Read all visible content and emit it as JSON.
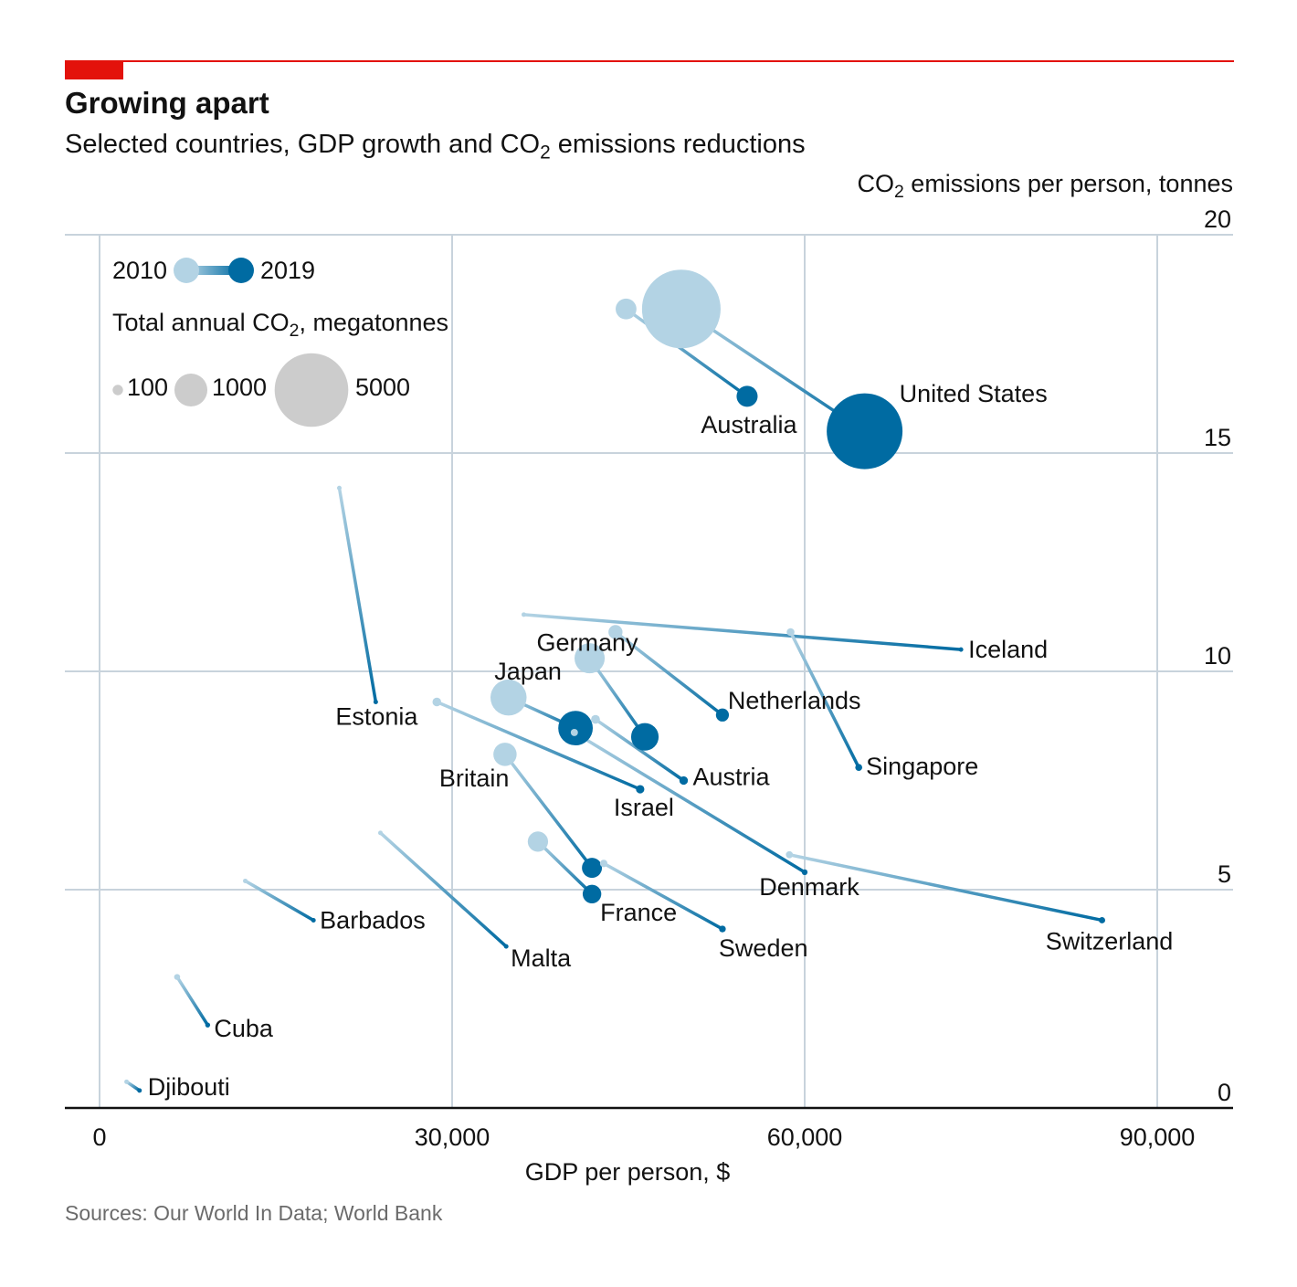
{
  "header": {
    "title": "Growing apart",
    "subtitle_pre": "Selected countries, GDP growth and CO",
    "subtitle_sub": "2",
    "subtitle_post": " emissions reductions"
  },
  "axes": {
    "y_title_pre": "CO",
    "y_title_sub": "2",
    "y_title_post": " emissions per person, tonnes",
    "x_title": "GDP per person, $"
  },
  "legend": {
    "year_start": "2010",
    "year_end": "2019",
    "size_title_pre": "Total annual CO",
    "size_title_sub": "2",
    "size_title_post": ", megatonnes",
    "size_labels": [
      "100",
      "1000",
      "5000"
    ]
  },
  "colors": {
    "start": "#b3d3e4",
    "end": "#006ba2",
    "grid": "#c8d3dc",
    "legend_bubble": "#cccccc",
    "accent": "#e3120b"
  },
  "footer": {
    "source": "Sources: Our World In Data; World Bank"
  },
  "chart_data": {
    "type": "scatter",
    "title": "Growing apart",
    "xlabel": "GDP per person, $",
    "ylabel": "CO2 emissions per person, tonnes",
    "xlim": [
      0,
      96000
    ],
    "ylim": [
      0,
      20
    ],
    "x_ticks": [
      0,
      30000,
      60000,
      90000
    ],
    "x_tick_labels": [
      "0",
      "30,000",
      "60,000",
      "90,000"
    ],
    "y_ticks": [
      0,
      5,
      10,
      15,
      20
    ],
    "y_tick_labels": [
      "0",
      "5",
      "10",
      "15",
      "20"
    ],
    "series": [
      {
        "name": "United States",
        "gdp_2010": 49500,
        "co2pp_2010": 18.3,
        "gdp_2019": 65100,
        "co2pp_2019": 15.5,
        "total_2010": 5700,
        "total_2019": 5300
      },
      {
        "name": "Australia",
        "gdp_2010": 44800,
        "co2pp_2010": 18.3,
        "gdp_2019": 55100,
        "co2pp_2019": 16.3,
        "total_2010": 400,
        "total_2019": 410
      },
      {
        "name": "Estonia",
        "gdp_2010": 20400,
        "co2pp_2010": 14.2,
        "gdp_2019": 23500,
        "co2pp_2019": 9.3,
        "total_2010": 19,
        "total_2019": 12
      },
      {
        "name": "Iceland",
        "gdp_2010": 36100,
        "co2pp_2010": 11.3,
        "gdp_2019": 73300,
        "co2pp_2019": 10.5,
        "total_2010": 3.5,
        "total_2019": 3.7
      },
      {
        "name": "Singapore",
        "gdp_2010": 58800,
        "co2pp_2010": 10.9,
        "gdp_2019": 64600,
        "co2pp_2019": 7.8,
        "total_2010": 56,
        "total_2019": 45
      },
      {
        "name": "Netherlands",
        "gdp_2010": 43900,
        "co2pp_2010": 10.9,
        "gdp_2019": 53000,
        "co2pp_2019": 9.0,
        "total_2010": 182,
        "total_2019": 156
      },
      {
        "name": "Germany",
        "gdp_2010": 41700,
        "co2pp_2010": 10.3,
        "gdp_2019": 46400,
        "co2pp_2019": 8.5,
        "total_2010": 840,
        "total_2019": 700
      },
      {
        "name": "Japan",
        "gdp_2010": 34800,
        "co2pp_2010": 9.4,
        "gdp_2019": 40500,
        "co2pp_2019": 8.7,
        "total_2010": 1200,
        "total_2019": 1100
      },
      {
        "name": "Austria",
        "gdp_2010": 42200,
        "co2pp_2010": 8.9,
        "gdp_2019": 49700,
        "co2pp_2019": 7.5,
        "total_2010": 72,
        "total_2019": 67
      },
      {
        "name": "Israel",
        "gdp_2010": 28700,
        "co2pp_2010": 9.3,
        "gdp_2019": 46000,
        "co2pp_2019": 7.3,
        "total_2010": 70,
        "total_2019": 65
      },
      {
        "name": "Denmark",
        "gdp_2010": 40400,
        "co2pp_2010": 8.6,
        "gdp_2019": 60000,
        "co2pp_2019": 5.4,
        "total_2010": 48,
        "total_2019": 31
      },
      {
        "name": "Britain",
        "gdp_2010": 34500,
        "co2pp_2010": 8.1,
        "gdp_2019": 41900,
        "co2pp_2019": 5.5,
        "total_2010": 500,
        "total_2019": 370
      },
      {
        "name": "France",
        "gdp_2010": 37300,
        "co2pp_2010": 6.1,
        "gdp_2019": 41900,
        "co2pp_2019": 4.9,
        "total_2010": 380,
        "total_2019": 320
      },
      {
        "name": "Sweden",
        "gdp_2010": 42900,
        "co2pp_2010": 5.6,
        "gdp_2019": 53000,
        "co2pp_2019": 4.1,
        "total_2010": 52,
        "total_2019": 42
      },
      {
        "name": "Switzerland",
        "gdp_2010": 58700,
        "co2pp_2010": 5.8,
        "gdp_2019": 85300,
        "co2pp_2019": 4.3,
        "total_2010": 46,
        "total_2019": 37
      },
      {
        "name": "Malta",
        "gdp_2010": 23900,
        "co2pp_2010": 6.3,
        "gdp_2019": 34600,
        "co2pp_2019": 3.7,
        "total_2010": 2.6,
        "total_2019": 1.8
      },
      {
        "name": "Barbados",
        "gdp_2010": 12400,
        "co2pp_2010": 5.2,
        "gdp_2019": 18200,
        "co2pp_2019": 4.3,
        "total_2010": 1.4,
        "total_2019": 1.2
      },
      {
        "name": "Cuba",
        "gdp_2010": 6600,
        "co2pp_2010": 3.0,
        "gdp_2019": 9200,
        "co2pp_2019": 1.9,
        "total_2010": 33,
        "total_2019": 22
      },
      {
        "name": "Djibouti",
        "gdp_2010": 2300,
        "co2pp_2010": 0.6,
        "gdp_2019": 3400,
        "co2pp_2019": 0.4,
        "total_2010": 0.5,
        "total_2019": 0.4
      }
    ]
  }
}
